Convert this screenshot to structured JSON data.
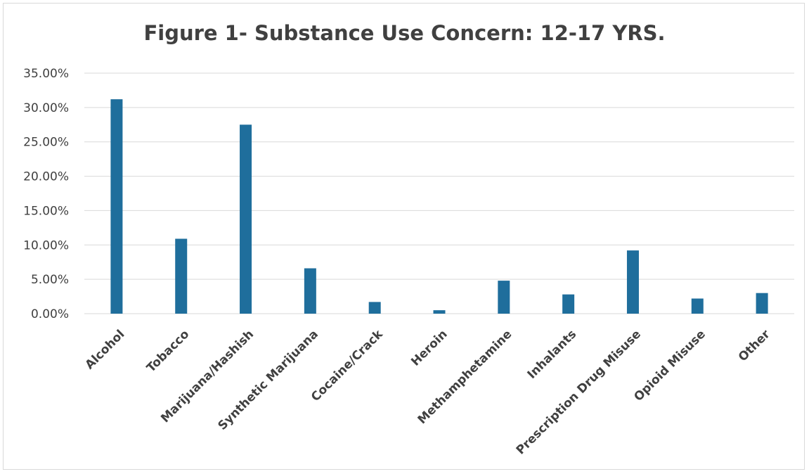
{
  "chart_data": {
    "type": "bar",
    "title": "Figure 1- Substance Use Concern: 12-17 YRS.",
    "xlabel": "",
    "ylabel": "",
    "categories": [
      "Alcohol",
      "Tobacco",
      "Marijuana/Hashish",
      "Synthetic Marijuana",
      "Cocaine/Crack",
      "Heroin",
      "Methamphetamine",
      "Inhalants",
      "Prescription Drug Misuse",
      "Opioid Misuse",
      "Other"
    ],
    "values": [
      31.2,
      10.9,
      27.5,
      6.6,
      1.7,
      0.5,
      4.8,
      2.8,
      9.2,
      2.2,
      3.0
    ],
    "ylim": [
      0,
      35
    ],
    "y_ticks": [
      0,
      5,
      10,
      15,
      20,
      25,
      30,
      35
    ],
    "y_tick_labels": [
      "0.00%",
      "5.00%",
      "10.00%",
      "15.00%",
      "20.00%",
      "25.00%",
      "30.00%",
      "35.00%"
    ],
    "grid": true,
    "legend": "none",
    "bar_color": "#1f6e9c",
    "grid_color": "#d9d9d9"
  }
}
